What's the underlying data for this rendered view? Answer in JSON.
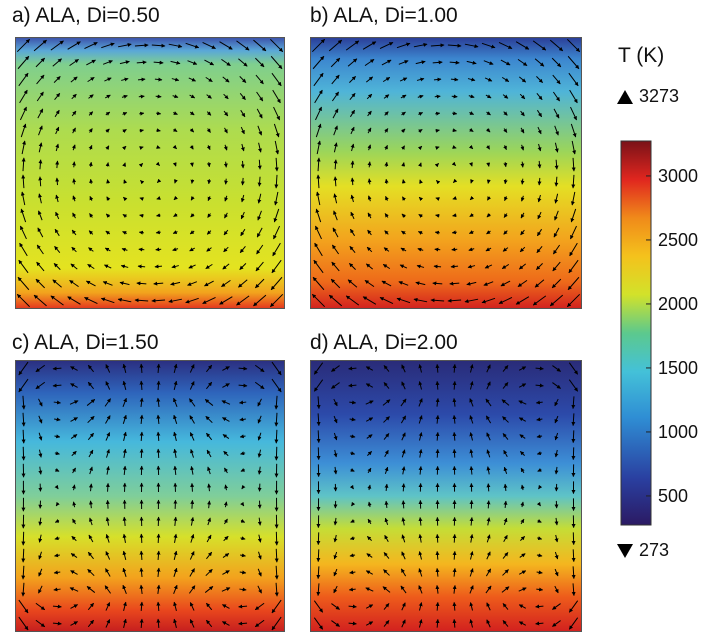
{
  "panels": [
    {
      "id": "a",
      "title": "a) ALA, Di=0.50"
    },
    {
      "id": "b",
      "title": "b) ALA, Di=1.00"
    },
    {
      "id": "c",
      "title": "c) ALA, Di=1.50"
    },
    {
      "id": "d",
      "title": "d) ALA, Di=2.00"
    }
  ],
  "colorbar": {
    "title": "T (K)",
    "max_label": "3273",
    "min_label": "273",
    "max_value": 3273,
    "min_value": 273,
    "tick_labels": [
      "3000",
      "2500",
      "2000",
      "1500",
      "1000",
      "500"
    ],
    "tick_values": [
      3000,
      2500,
      2000,
      1500,
      1000,
      500
    ]
  }
}
